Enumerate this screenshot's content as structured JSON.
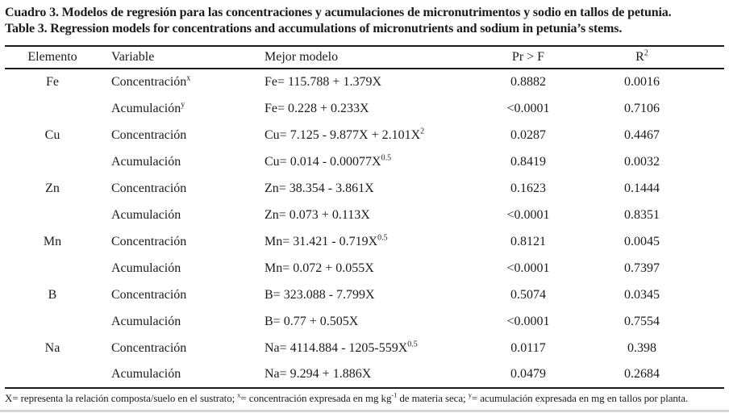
{
  "titles": {
    "spanish": "Cuadro 3. Modelos de regresión para las concentraciones y acumulaciones de micronutrimentos y sodio en tallos de petunia.",
    "english": "Table 3. Regression models for concentrations and accumulations of micronutrients and sodium in petunia’s stems."
  },
  "table": {
    "headers": {
      "element": "Elemento",
      "variable": "Variable",
      "model": "Mejor modelo",
      "pr_f": "Pr > F",
      "r2": "R",
      "r2_sup": "2"
    },
    "rows": [
      {
        "element": "Fe",
        "variable": "Concentración",
        "variable_sup": "x",
        "model": "Fe= 115.788 + 1.379X",
        "model_sup": "",
        "pr_f": "0.8882",
        "r2": "0.0016"
      },
      {
        "element": "",
        "variable": "Acumulación",
        "variable_sup": "y",
        "model": "Fe= 0.228 + 0.233X",
        "model_sup": "",
        "pr_f": "<0.0001",
        "r2": "0.7106"
      },
      {
        "element": "Cu",
        "variable": "Concentración",
        "variable_sup": "",
        "model": "Cu= 7.125 - 9.877X + 2.101X",
        "model_sup": "2",
        "pr_f": "0.0287",
        "r2": "0.4467"
      },
      {
        "element": "",
        "variable": "Acumulación",
        "variable_sup": "",
        "model": "Cu= 0.014 - 0.00077X",
        "model_sup": "0.5",
        "pr_f": "0.8419",
        "r2": "0.0032"
      },
      {
        "element": "Zn",
        "variable": "Concentración",
        "variable_sup": "",
        "model": "Zn= 38.354 - 3.861X",
        "model_sup": "",
        "pr_f": "0.1623",
        "r2": "0.1444"
      },
      {
        "element": "",
        "variable": "Acumulación",
        "variable_sup": "",
        "model": "Zn= 0.073 + 0.113X",
        "model_sup": "",
        "pr_f": "<0.0001",
        "r2": "0.8351"
      },
      {
        "element": "Mn",
        "variable": "Concentración",
        "variable_sup": "",
        "model": "Mn= 31.421 - 0.719X",
        "model_sup": "0.5",
        "pr_f": "0.8121",
        "r2": "0.0045"
      },
      {
        "element": "",
        "variable": "Acumulación",
        "variable_sup": "",
        "model": "Mn= 0.072 + 0.055X",
        "model_sup": "",
        "pr_f": "<0.0001",
        "r2": "0.7397"
      },
      {
        "element": "B",
        "variable": "Concentración",
        "variable_sup": "",
        "model": "B= 323.088 - 7.799X",
        "model_sup": "",
        "pr_f": "0.5074",
        "r2": "0.0345"
      },
      {
        "element": "",
        "variable": "Acumulación",
        "variable_sup": "",
        "model": "B= 0.77 + 0.505X",
        "model_sup": "",
        "pr_f": "<0.0001",
        "r2": "0.7554"
      },
      {
        "element": "Na",
        "variable": "Concentración",
        "variable_sup": "",
        "model": "Na= 4114.884 - 1205-559X",
        "model_sup": "0.5",
        "pr_f": "0.0117",
        "r2": "0.398"
      },
      {
        "element": "",
        "variable": "Acumulación",
        "variable_sup": "",
        "model": "Na= 9.294 + 1.886X",
        "model_sup": "",
        "pr_f": "0.0479",
        "r2": "0.2684"
      }
    ]
  },
  "footnote": {
    "part1": "X= representa la relación composta/suelo en el sustrato; ",
    "sup1": "x",
    "part2": "= concentración expresada en mg kg",
    "sup2": "-1",
    "part3": " de materia seca; ",
    "sup3": "y",
    "part4": "= acumulación expresada en mg en tallos por planta."
  }
}
